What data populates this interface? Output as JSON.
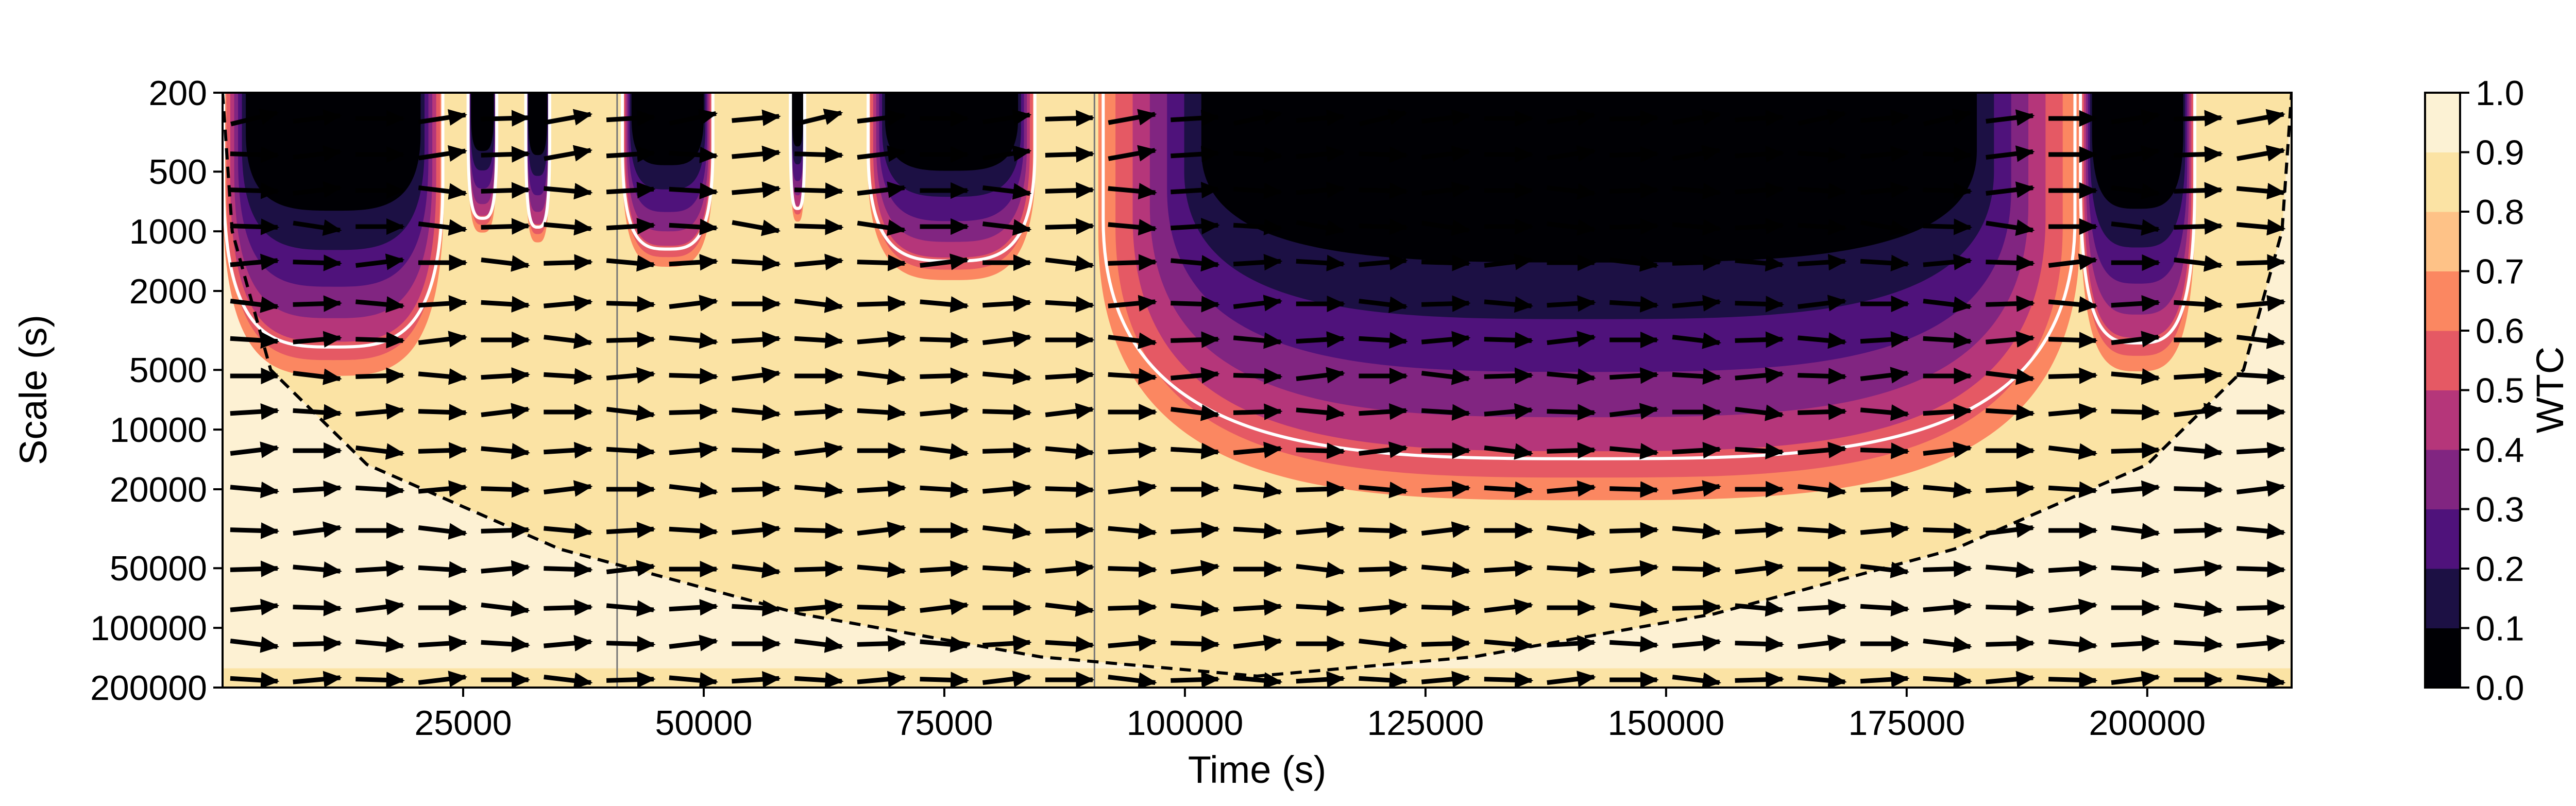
{
  "chart_data": {
    "type": "heatmap",
    "kind": "wavelet coherence (WTC) scalogram",
    "xlabel": "Time (s)",
    "ylabel": "Scale (s)",
    "x_scale": "linear",
    "y_scale": "log",
    "y_inverted": true,
    "xlim": [
      0,
      215000
    ],
    "ylim": [
      200,
      200000
    ],
    "xticks": [
      25000,
      50000,
      75000,
      100000,
      125000,
      150000,
      175000,
      200000
    ],
    "yticks": [
      200,
      500,
      1000,
      2000,
      5000,
      10000,
      20000,
      50000,
      100000,
      200000
    ],
    "gap_boundaries_x": [
      41000,
      90600
    ],
    "colorbar": {
      "label": "WTC",
      "colormap": "magma",
      "ticks": [
        "0.0",
        "0.1",
        "0.2",
        "0.3",
        "0.4",
        "0.5",
        "0.6",
        "0.7",
        "0.8",
        "0.9",
        "1.0"
      ],
      "levels": [
        0.0,
        0.1,
        0.2,
        0.3,
        0.4,
        0.5,
        0.6,
        0.7,
        0.8,
        0.9,
        1.0
      ],
      "colors": [
        "#000004",
        "#1c1044",
        "#4f127b",
        "#812581",
        "#b5367a",
        "#e55964",
        "#fb8761",
        "#fec287",
        "#fbe3a4",
        "#fcf2d4"
      ]
    },
    "background_level_color": "#fbe3a4",
    "high_coherence_color": "#fdf1d3",
    "significance_contour_color": "#ffffff",
    "cone_of_influence": {
      "style": "dashed",
      "x": [
        0,
        1000,
        5000,
        15000,
        35000,
        60000,
        85000,
        107500,
        130000,
        155000,
        180000,
        200000,
        210000,
        214000,
        215000
      ],
      "scale": [
        200,
        1000,
        5000,
        15000,
        40000,
        85000,
        140000,
        175000,
        140000,
        85000,
        40000,
        15000,
        5000,
        1000,
        200
      ]
    },
    "low_coherence_regions": [
      {
        "x_range": [
          0,
          23000
        ],
        "max_scale": 4200
      },
      {
        "x_range": [
          25500,
          28500
        ],
        "max_scale": 900
      },
      {
        "x_range": [
          31500,
          34000
        ],
        "max_scale": 1000
      },
      {
        "x_range": [
          41500,
          51000
        ],
        "max_scale": 1300
      },
      {
        "x_range": [
          59000,
          60500
        ],
        "max_scale": 800
      },
      {
        "x_range": [
          67000,
          84500
        ],
        "max_scale": 1500
      },
      {
        "x_range": [
          91000,
          193000
        ],
        "max_scale": 16000
      },
      {
        "x_range": [
          193000,
          205000
        ],
        "max_scale": 4000
      }
    ],
    "phase_arrow_direction": "mostly right-pointing (in phase)"
  }
}
